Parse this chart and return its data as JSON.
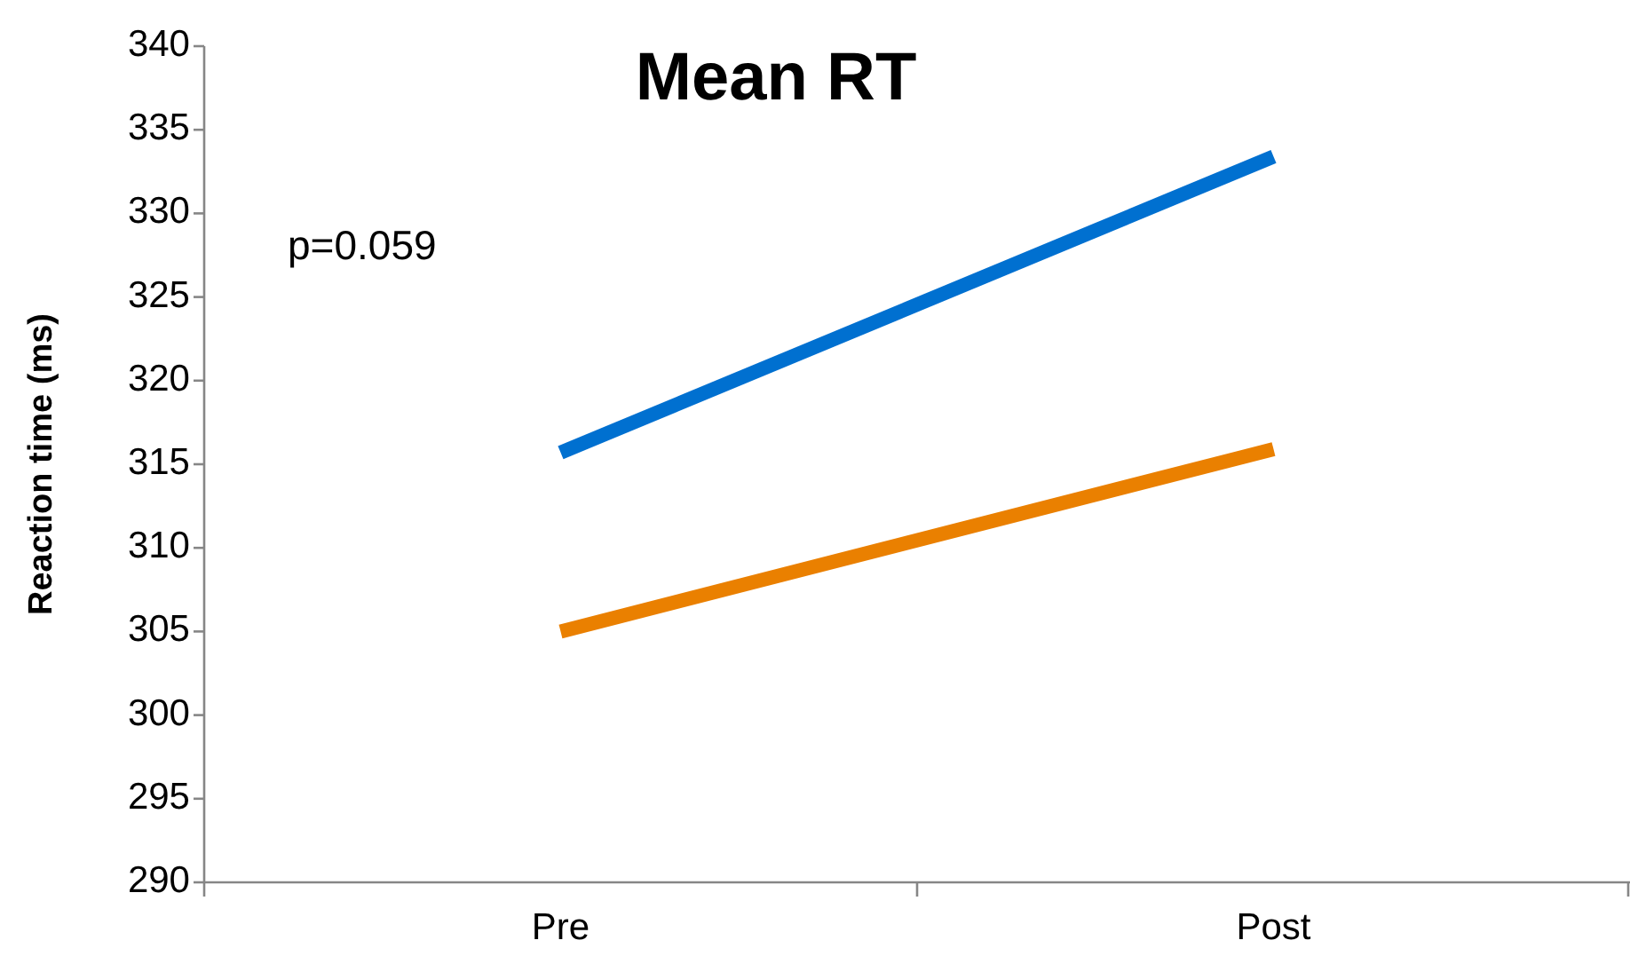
{
  "chart_data": {
    "type": "line",
    "title": "Mean RT",
    "ylabel": "Reaction time (ms)",
    "categories": [
      "Pre",
      "Post"
    ],
    "series": [
      {
        "color": "#0070d0",
        "values": [
          315.7,
          333.4
        ]
      },
      {
        "color": "#ea8000",
        "values": [
          305.0,
          315.9
        ]
      }
    ],
    "ylim": [
      290,
      340
    ],
    "yticks": [
      290,
      295,
      300,
      305,
      310,
      315,
      320,
      325,
      330,
      335,
      340
    ],
    "grid": false,
    "marker": "none",
    "line_style": "solid",
    "annotations": [
      "p=0.059"
    ]
  }
}
